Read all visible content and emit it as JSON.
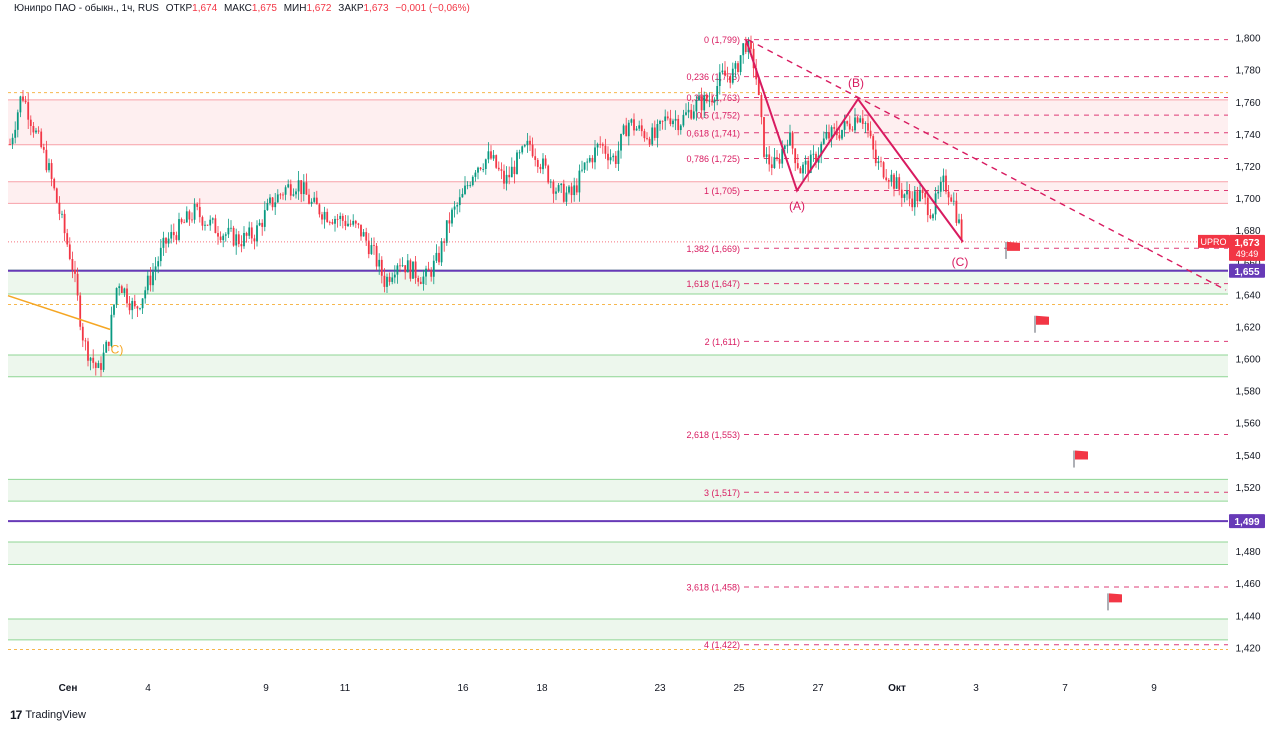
{
  "header": {
    "instrument": "Юнипро ПАО - обыкн., 1ч, RUS",
    "open_label": "ОТКР",
    "open": "1,674",
    "high_label": "МАКС",
    "high": "1,675",
    "low_label": "МИН",
    "low": "1,672",
    "close_label": "ЗАКР",
    "close": "1,673",
    "change": "−0,001 (−0,06%)"
  },
  "footer": {
    "logo": "17",
    "brand": "TradingView"
  },
  "colors": {
    "up": "#089981",
    "down": "#f23645",
    "fib": "#d81b60",
    "support": "#4caf50",
    "purple": "#673ab7",
    "orange": "#f5a623"
  },
  "chart_data": {
    "type": "candlestick",
    "ylim": [
      1.405,
      1.815
    ],
    "y_ticks": [
      "1,800",
      "1,780",
      "1,760",
      "1,740",
      "1,720",
      "1,700",
      "1,680",
      "1,660",
      "1,640",
      "1,620",
      "1,600",
      "1,580",
      "1,560",
      "1,540",
      "1,520",
      "1,500",
      "1,480",
      "1,460",
      "1,440",
      "1,420"
    ],
    "y_tick_values": [
      1.8,
      1.78,
      1.76,
      1.74,
      1.72,
      1.7,
      1.68,
      1.66,
      1.64,
      1.62,
      1.6,
      1.58,
      1.56,
      1.54,
      1.52,
      1.5,
      1.48,
      1.46,
      1.44,
      1.42
    ],
    "x_ticks": [
      {
        "label": "Сен",
        "bold": true,
        "x": 68
      },
      {
        "label": "4",
        "x": 148
      },
      {
        "label": "9",
        "x": 266
      },
      {
        "label": "11",
        "x": 345
      },
      {
        "label": "16",
        "x": 463
      },
      {
        "label": "18",
        "x": 542
      },
      {
        "label": "23",
        "x": 660
      },
      {
        "label": "25",
        "x": 739
      },
      {
        "label": "27",
        "x": 818
      },
      {
        "label": "Окт",
        "bold": true,
        "x": 897
      },
      {
        "label": "3",
        "x": 976
      },
      {
        "label": "7",
        "x": 1065
      },
      {
        "label": "9",
        "x": 1154
      }
    ],
    "price_path": [
      [
        10,
        1.734
      ],
      [
        22,
        1.766
      ],
      [
        35,
        1.742
      ],
      [
        48,
        1.72
      ],
      [
        60,
        1.69
      ],
      [
        72,
        1.66
      ],
      [
        84,
        1.61
      ],
      [
        98,
        1.592
      ],
      [
        108,
        1.61
      ],
      [
        118,
        1.65
      ],
      [
        135,
        1.63
      ],
      [
        150,
        1.65
      ],
      [
        165,
        1.672
      ],
      [
        180,
        1.682
      ],
      [
        195,
        1.692
      ],
      [
        210,
        1.684
      ],
      [
        225,
        1.678
      ],
      [
        240,
        1.674
      ],
      [
        255,
        1.678
      ],
      [
        270,
        1.696
      ],
      [
        285,
        1.706
      ],
      [
        298,
        1.71
      ],
      [
        312,
        1.696
      ],
      [
        328,
        1.69
      ],
      [
        345,
        1.686
      ],
      [
        360,
        1.68
      ],
      [
        372,
        1.668
      ],
      [
        385,
        1.648
      ],
      [
        398,
        1.662
      ],
      [
        410,
        1.656
      ],
      [
        425,
        1.65
      ],
      [
        438,
        1.662
      ],
      [
        450,
        1.688
      ],
      [
        462,
        1.7
      ],
      [
        475,
        1.72
      ],
      [
        490,
        1.726
      ],
      [
        505,
        1.71
      ],
      [
        518,
        1.724
      ],
      [
        530,
        1.734
      ],
      [
        545,
        1.718
      ],
      [
        558,
        1.704
      ],
      [
        572,
        1.702
      ],
      [
        585,
        1.72
      ],
      [
        600,
        1.734
      ],
      [
        615,
        1.724
      ],
      [
        628,
        1.748
      ],
      [
        640,
        1.742
      ],
      [
        655,
        1.738
      ],
      [
        668,
        1.752
      ],
      [
        680,
        1.748
      ],
      [
        695,
        1.758
      ],
      [
        710,
        1.762
      ],
      [
        722,
        1.776
      ],
      [
        735,
        1.778
      ],
      [
        745,
        1.798
      ],
      [
        755,
        1.782
      ],
      [
        765,
        1.725
      ],
      [
        776,
        1.72
      ],
      [
        788,
        1.74
      ],
      [
        800,
        1.718
      ],
      [
        812,
        1.722
      ],
      [
        826,
        1.738
      ],
      [
        840,
        1.742
      ],
      [
        852,
        1.748
      ],
      [
        860,
        1.754
      ],
      [
        866,
        1.746
      ],
      [
        876,
        1.722
      ],
      [
        888,
        1.716
      ],
      [
        900,
        1.705
      ],
      [
        910,
        1.7
      ],
      [
        920,
        1.702
      ],
      [
        932,
        1.692
      ],
      [
        944,
        1.71
      ],
      [
        952,
        1.702
      ],
      [
        962,
        1.676
      ]
    ],
    "fib_levels": [
      {
        "label": "0 (1,799)",
        "value": 1.799
      },
      {
        "label": "0,236 (1,776)",
        "value": 1.776
      },
      {
        "label": "0,382 (1,763)",
        "value": 1.763
      },
      {
        "label": "0,5 (1,752)",
        "value": 1.752
      },
      {
        "label": "0,618 (1,741)",
        "value": 1.741
      },
      {
        "label": "0,786 (1,725)",
        "value": 1.725
      },
      {
        "label": "1 (1,705)",
        "value": 1.705
      },
      {
        "label": "1,382 (1,669)",
        "value": 1.669
      },
      {
        "label": "1,618 (1,647)",
        "value": 1.647
      },
      {
        "label": "2 (1,611)",
        "value": 1.611
      },
      {
        "label": "2,618 (1,553)",
        "value": 1.553
      },
      {
        "label": "3 (1,517)",
        "value": 1.517
      },
      {
        "label": "3,618 (1,458)",
        "value": 1.458
      },
      {
        "label": "4 (1,422)",
        "value": 1.422
      }
    ],
    "zones": [
      {
        "y1": 1.7335,
        "y2": 1.7615,
        "kind": "resistance"
      },
      {
        "y1": 1.697,
        "y2": 1.7105,
        "kind": "resistance"
      },
      {
        "y1": 1.6405,
        "y2": 1.6555,
        "kind": "support"
      },
      {
        "y1": 1.589,
        "y2": 1.6025,
        "kind": "support"
      },
      {
        "y1": 1.5115,
        "y2": 1.525,
        "kind": "support"
      },
      {
        "y1": 1.472,
        "y2": 1.486,
        "kind": "support"
      },
      {
        "y1": 1.425,
        "y2": 1.438,
        "kind": "support"
      }
    ],
    "horizontal_lines": [
      {
        "value": 1.655,
        "label": "1,655"
      },
      {
        "value": 1.499,
        "label": "1,499"
      }
    ],
    "wave_labels": [
      {
        "text": "(A)",
        "x": 797,
        "value": 1.6955
      },
      {
        "text": "(B)",
        "x": 856,
        "value": 1.772
      },
      {
        "text": "(C)",
        "x": 960,
        "value": 1.6605
      },
      {
        "text": "C)",
        "x": 117,
        "value": 1.606
      }
    ],
    "wave_path": [
      [
        746,
        1.799
      ],
      [
        797,
        1.705
      ],
      [
        858,
        1.762
      ],
      [
        963,
        1.673
      ]
    ],
    "trendline": [
      [
        748,
        1.799
      ],
      [
        1226,
        1.643
      ]
    ],
    "orange_line": [
      [
        8,
        1.6395
      ],
      [
        110,
        1.6185
      ]
    ],
    "flags": [
      {
        "x": 1006,
        "value": 1.668
      },
      {
        "x": 1035,
        "value": 1.622
      },
      {
        "x": 1074,
        "value": 1.538
      },
      {
        "x": 1108,
        "value": 1.449
      }
    ],
    "price_tag": {
      "symbol": "UPRO",
      "price": "1,673",
      "timer": "49:49",
      "value": 1.673
    }
  }
}
